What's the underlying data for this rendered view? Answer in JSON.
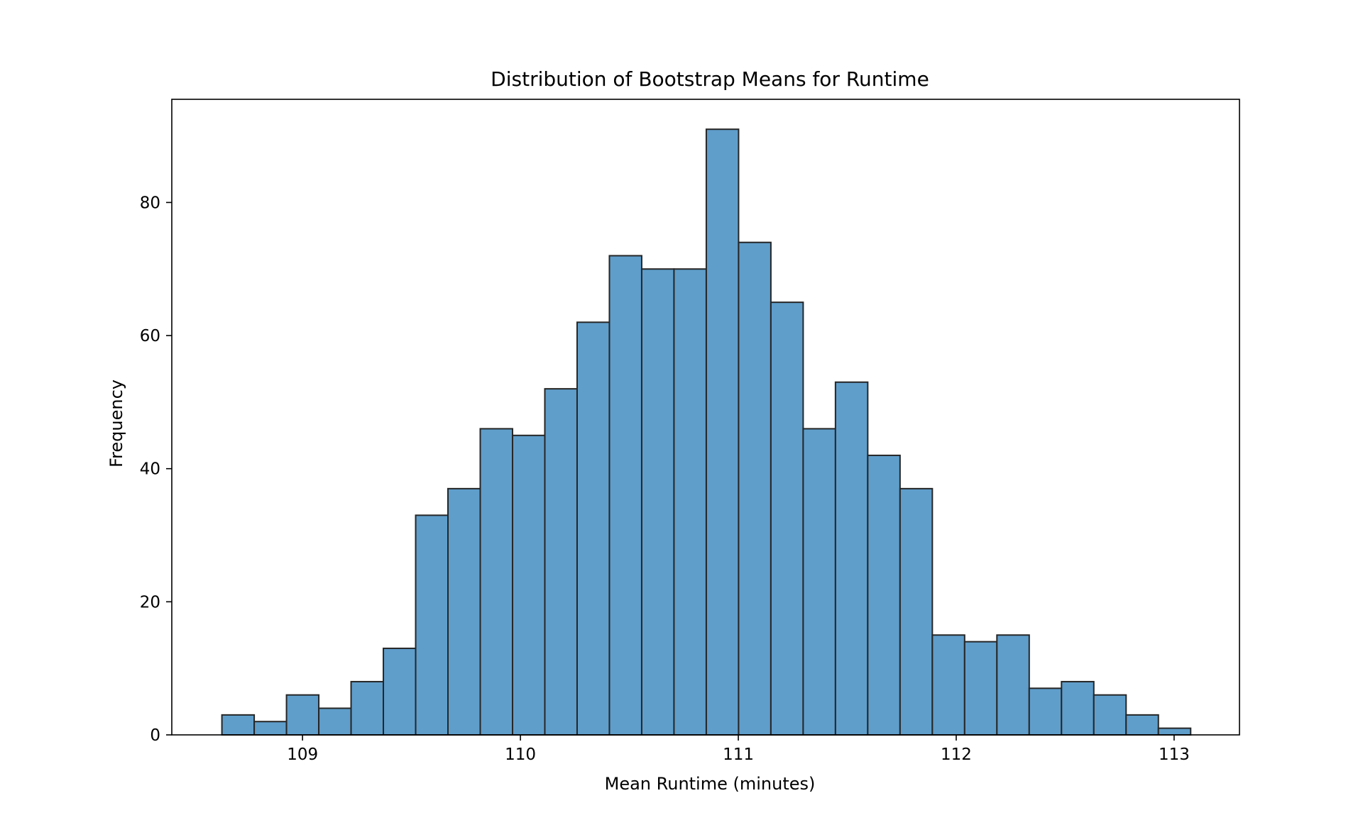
{
  "chart_data": {
    "type": "bar",
    "title": "Distribution of Bootstrap Means for Runtime",
    "xlabel": "Mean Runtime (minutes)",
    "ylabel": "Frequency",
    "bin_start": 108.63,
    "bin_width": 0.1482,
    "values": [
      3,
      2,
      6,
      4,
      8,
      13,
      33,
      37,
      46,
      45,
      52,
      62,
      72,
      70,
      70,
      91,
      74,
      65,
      46,
      53,
      42,
      37,
      15,
      14,
      15,
      7,
      8,
      6,
      3,
      1
    ],
    "xlim": [
      108.4,
      113.3
    ],
    "ylim": [
      0,
      95.5
    ],
    "xticks": [
      109,
      110,
      111,
      112,
      113
    ],
    "yticks": [
      0,
      20,
      40,
      60,
      80
    ],
    "bar_color": "#5f9ecb",
    "edge_color": "#262626",
    "grid": false
  }
}
